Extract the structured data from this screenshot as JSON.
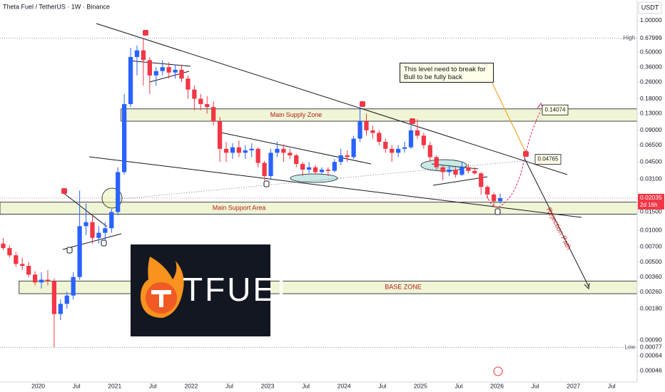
{
  "chart_data": {
    "type": "candlestick",
    "title": "Theta Fuel / TetherUS · 1W · Binance",
    "currency": "USDT",
    "log": true,
    "up_color": "#2962ff",
    "down_color": "#f23645",
    "xlim": [
      "2019-07",
      "2027-11"
    ],
    "xticks": [
      {
        "value": "2020-01",
        "label": "2020"
      },
      {
        "value": "2020-07",
        "label": "Jul"
      },
      {
        "value": "2021-01",
        "label": "2021"
      },
      {
        "value": "2021-07",
        "label": "Jul"
      },
      {
        "value": "2022-01",
        "label": "2022"
      },
      {
        "value": "2022-07",
        "label": "Jul"
      },
      {
        "value": "2023-01",
        "label": "2023"
      },
      {
        "value": "2023-07",
        "label": "Jul"
      },
      {
        "value": "2024-01",
        "label": "2024"
      },
      {
        "value": "2024-07",
        "label": "Jul"
      },
      {
        "value": "2025-01",
        "label": "2025"
      },
      {
        "value": "2025-07",
        "label": "Jul"
      },
      {
        "value": "2026-01",
        "label": "2026"
      },
      {
        "value": "2026-07",
        "label": "Jul"
      },
      {
        "value": "2027-01",
        "label": "2027"
      },
      {
        "value": "2027-07",
        "label": "Jul"
      }
    ],
    "ylim": [
      0.00036,
      1.57
    ],
    "yticks": [
      {
        "value": 1,
        "label": "1.00000"
      },
      {
        "value": 0.5,
        "label": "0.50000"
      },
      {
        "value": 0.36,
        "label": "0.36000"
      },
      {
        "value": 0.26,
        "label": "0.26000"
      },
      {
        "value": 0.18,
        "label": "0.18000"
      },
      {
        "value": 0.13,
        "label": "0.13000"
      },
      {
        "value": 0.09,
        "label": "0.09000"
      },
      {
        "value": 0.065,
        "label": "0.06500"
      },
      {
        "value": 0.045,
        "label": "0.04500"
      },
      {
        "value": 0.031,
        "label": "0.03100"
      },
      {
        "value": 0.015,
        "label": "0.01500"
      },
      {
        "value": 0.01,
        "label": "0.01000"
      },
      {
        "value": 0.007,
        "label": "0.00700"
      },
      {
        "value": 0.005,
        "label": "0.00500"
      },
      {
        "value": 0.0036,
        "label": "0.00360"
      },
      {
        "value": 0.0026,
        "label": "0.00260"
      },
      {
        "value": 0.0018,
        "label": "0.00180"
      },
      {
        "value": 0.0009,
        "label": "0.00090"
      },
      {
        "value": 0.00064,
        "label": "0.00064"
      },
      {
        "value": 0.00046,
        "label": "0.00046"
      }
    ],
    "x": [
      "2019-07",
      "2019-08",
      "2019-09",
      "2019-10",
      "2019-11",
      "2019-12",
      "2020-01",
      "2020-02",
      "2020-03",
      "2020-04",
      "2020-05",
      "2020-06",
      "2020-07",
      "2020-08",
      "2020-09",
      "2020-10",
      "2020-11",
      "2020-12",
      "2021-01",
      "2021-02",
      "2021-03",
      "2021-04",
      "2021-05",
      "2021-06",
      "2021-07",
      "2021-08",
      "2021-09",
      "2021-10",
      "2021-11",
      "2021-12",
      "2022-01",
      "2022-02",
      "2022-03",
      "2022-04",
      "2022-05",
      "2022-06",
      "2022-07",
      "2022-08",
      "2022-09",
      "2022-10",
      "2022-11",
      "2022-12",
      "2023-01",
      "2023-02",
      "2023-03",
      "2023-04",
      "2023-05",
      "2023-06",
      "2023-07",
      "2023-08",
      "2023-09",
      "2023-10",
      "2023-11",
      "2023-12",
      "2024-01",
      "2024-02",
      "2024-03",
      "2024-04",
      "2024-05",
      "2024-06",
      "2024-07",
      "2024-08",
      "2024-09",
      "2024-10",
      "2024-11",
      "2024-12",
      "2025-01",
      "2025-02",
      "2025-03",
      "2025-04",
      "2025-05",
      "2025-06",
      "2025-07",
      "2025-08",
      "2025-09",
      "2025-10",
      "2025-11",
      "2025-12",
      "2026-01"
    ],
    "open": [
      0.0075,
      0.0068,
      0.0058,
      0.0048,
      0.0046,
      0.0038,
      0.0032,
      0.0034,
      0.0033,
      0.0016,
      0.002,
      0.0024,
      0.0036,
      0.011,
      0.012,
      0.0085,
      0.0095,
      0.0105,
      0.015,
      0.036,
      0.16,
      0.45,
      0.52,
      0.42,
      0.3,
      0.33,
      0.36,
      0.32,
      0.34,
      0.28,
      0.22,
      0.18,
      0.16,
      0.15,
      0.11,
      0.06,
      0.055,
      0.062,
      0.055,
      0.058,
      0.06,
      0.044,
      0.033,
      0.055,
      0.06,
      0.055,
      0.052,
      0.043,
      0.038,
      0.04,
      0.036,
      0.038,
      0.037,
      0.045,
      0.052,
      0.05,
      0.075,
      0.11,
      0.09,
      0.085,
      0.07,
      0.06,
      0.055,
      0.06,
      0.062,
      0.09,
      0.08,
      0.065,
      0.05,
      0.04,
      0.036,
      0.038,
      0.034,
      0.04,
      0.037,
      0.035,
      0.026,
      0.022,
      0.019
    ],
    "high": [
      0.0085,
      0.0072,
      0.0062,
      0.0055,
      0.005,
      0.0041,
      0.004,
      0.0042,
      0.0035,
      0.0022,
      0.0026,
      0.004,
      0.024,
      0.018,
      0.014,
      0.011,
      0.012,
      0.016,
      0.04,
      0.2,
      0.55,
      0.58,
      0.68,
      0.45,
      0.36,
      0.42,
      0.4,
      0.38,
      0.38,
      0.3,
      0.24,
      0.2,
      0.19,
      0.17,
      0.12,
      0.07,
      0.068,
      0.072,
      0.065,
      0.068,
      0.062,
      0.046,
      0.06,
      0.07,
      0.066,
      0.06,
      0.054,
      0.045,
      0.045,
      0.042,
      0.04,
      0.04,
      0.048,
      0.06,
      0.058,
      0.08,
      0.15,
      0.13,
      0.1,
      0.09,
      0.075,
      0.065,
      0.065,
      0.07,
      0.1,
      0.115,
      0.085,
      0.07,
      0.052,
      0.042,
      0.042,
      0.04,
      0.045,
      0.043,
      0.04,
      0.036,
      0.027,
      0.023,
      0.0225
    ],
    "low": [
      0.0065,
      0.0055,
      0.0045,
      0.0042,
      0.0036,
      0.003,
      0.0028,
      0.003,
      0.00077,
      0.0014,
      0.0018,
      0.0022,
      0.0034,
      0.009,
      0.0075,
      0.0075,
      0.008,
      0.0095,
      0.014,
      0.034,
      0.15,
      0.3,
      0.24,
      0.2,
      0.24,
      0.3,
      0.28,
      0.28,
      0.26,
      0.18,
      0.14,
      0.14,
      0.13,
      0.1,
      0.045,
      0.045,
      0.048,
      0.05,
      0.048,
      0.05,
      0.04,
      0.03,
      0.031,
      0.05,
      0.045,
      0.048,
      0.04,
      0.033,
      0.035,
      0.034,
      0.034,
      0.033,
      0.036,
      0.042,
      0.045,
      0.048,
      0.07,
      0.08,
      0.075,
      0.065,
      0.055,
      0.045,
      0.05,
      0.055,
      0.06,
      0.075,
      0.06,
      0.045,
      0.038,
      0.03,
      0.033,
      0.032,
      0.033,
      0.035,
      0.034,
      0.022,
      0.02,
      0.017,
      0.018
    ],
    "close": [
      0.0068,
      0.0058,
      0.0048,
      0.0046,
      0.0038,
      0.0032,
      0.0034,
      0.0033,
      0.0016,
      0.002,
      0.0024,
      0.0036,
      0.011,
      0.012,
      0.0085,
      0.0095,
      0.0105,
      0.015,
      0.036,
      0.16,
      0.45,
      0.52,
      0.42,
      0.3,
      0.33,
      0.36,
      0.32,
      0.34,
      0.28,
      0.22,
      0.18,
      0.16,
      0.15,
      0.11,
      0.06,
      0.055,
      0.062,
      0.055,
      0.058,
      0.06,
      0.044,
      0.033,
      0.055,
      0.06,
      0.055,
      0.052,
      0.043,
      0.038,
      0.04,
      0.036,
      0.038,
      0.037,
      0.045,
      0.052,
      0.05,
      0.075,
      0.11,
      0.09,
      0.085,
      0.07,
      0.06,
      0.055,
      0.06,
      0.062,
      0.09,
      0.08,
      0.065,
      0.05,
      0.04,
      0.036,
      0.038,
      0.034,
      0.04,
      0.037,
      0.035,
      0.026,
      0.022,
      0.019,
      0.02035
    ],
    "high_label": "High",
    "high_value": 0.67999,
    "low_label": "Low",
    "low_value": 0.00077,
    "last_price": 0.02035,
    "countdown": "2d 16h",
    "zones": [
      {
        "label": "Main Supply Zone",
        "from": "2021-02",
        "low": 0.11,
        "high": 0.144
      },
      {
        "label": "Main Support Area",
        "from": "2019-07",
        "low": 0.0143,
        "high": 0.0186
      },
      {
        "label": "BASE ZONE",
        "from": "2019-10",
        "low": 0.0025,
        "high": 0.0033
      }
    ],
    "targets": [
      0.14074,
      0.04765
    ],
    "callout": "This level need to break for Bull to be fully back",
    "path_label": "Rejection Path",
    "logo_text": "TFUEL"
  }
}
